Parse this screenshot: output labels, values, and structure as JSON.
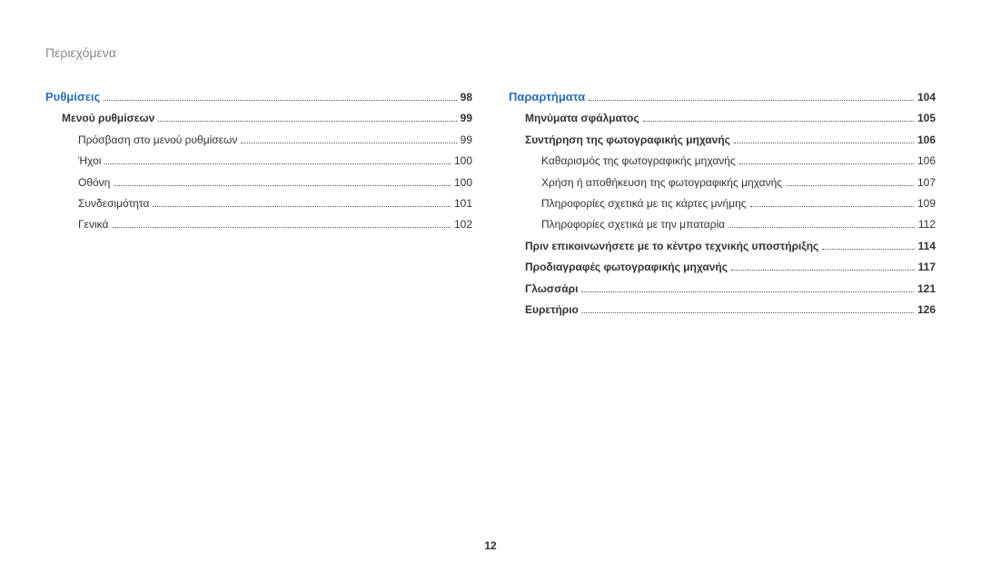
{
  "header": "Περιεχόμενα",
  "page_number": "12",
  "columns": [
    {
      "lines": [
        {
          "title": "Ρυθμίσεις",
          "page": "98",
          "section_head": true
        },
        {
          "title": "Μενού ρυθμίσεων",
          "page": "99",
          "bold": true,
          "indent": 1
        },
        {
          "title": "Πρόσβαση στο μενού ρυθμίσεων",
          "page": "99",
          "indent": 2
        },
        {
          "title": "Ήχοι",
          "page": "100",
          "indent": 2
        },
        {
          "title": "Οθόνη",
          "page": "100",
          "indent": 2
        },
        {
          "title": "Συνδεσιμότητα",
          "page": "101",
          "indent": 2
        },
        {
          "title": "Γενικά",
          "page": "102",
          "indent": 2
        }
      ]
    },
    {
      "lines": [
        {
          "title": "Παραρτήματα",
          "page": "104",
          "section_head": true
        },
        {
          "title": "Μηνύματα σφάλματος",
          "page": "105",
          "bold": true,
          "indent": 1
        },
        {
          "title": "Συντήρηση της φωτογραφικής μηχανής",
          "page": "106",
          "bold": true,
          "indent": 1
        },
        {
          "title": "Καθαρισμός της φωτογραφικής μηχανής",
          "page": "106",
          "indent": 2
        },
        {
          "title": "Χρήση ή αποθήκευση της φωτογραφικής μηχανής",
          "page": "107",
          "indent": 2
        },
        {
          "title": "Πληροφορίες σχετικά με τις κάρτες μνήμης",
          "page": "109",
          "indent": 2
        },
        {
          "title": "Πληροφορίες σχετικά με την μπαταρία",
          "page": "112",
          "indent": 2
        },
        {
          "title": "Πριν επικοινωνήσετε με το κέντρο τεχνικής υποστήριξης",
          "page": "114",
          "bold": true,
          "indent": 1
        },
        {
          "title": "Προδιαγραφές φωτογραφικής μηχανής",
          "page": "117",
          "bold": true,
          "indent": 1
        },
        {
          "title": "Γλωσσάρι",
          "page": "121",
          "bold": true,
          "indent": 1
        },
        {
          "title": "Ευρετήριο",
          "page": "126",
          "bold": true,
          "indent": 1
        }
      ]
    }
  ]
}
